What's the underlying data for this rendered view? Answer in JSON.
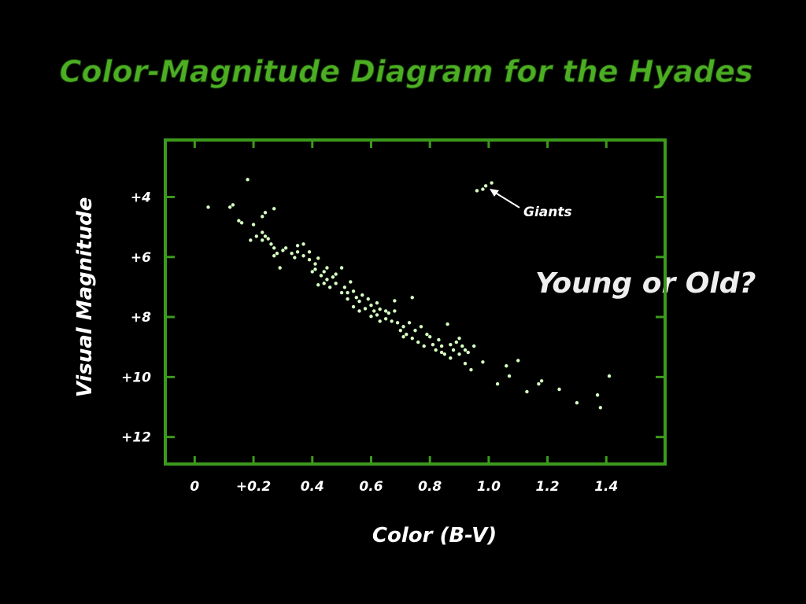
{
  "chart_data": {
    "type": "scatter",
    "title": "Color-Magnitude Diagram for the Hyades",
    "x_label": "Color (B-V)",
    "y_label": "Visual Magnitude",
    "annotations": [
      "Giants",
      "Young or Old?"
    ],
    "color": "#d6ffc2",
    "frame_color": "#3c9a1c",
    "xlim": [
      -0.1,
      1.6
    ],
    "ylim": [
      2.1,
      12.9
    ],
    "y_inverted": true,
    "xticks": [
      0,
      {
        "value": 0.2,
        "label": "+0.2"
      },
      0.4,
      0.6,
      0.8,
      {
        "value": 1,
        "label": "1.0"
      },
      1.2,
      1.4
    ],
    "yticks": [
      {
        "value": 4,
        "label": "+4"
      },
      {
        "value": 6,
        "label": "+6"
      },
      {
        "value": 8,
        "label": "+8"
      },
      {
        "value": 10,
        "label": "+10"
      },
      {
        "value": 12,
        "label": "+12"
      }
    ],
    "x": [
      0.046,
      0.18,
      0.12,
      0.13,
      0.15,
      0.16,
      0.2,
      0.23,
      0.24,
      0.27,
      0.19,
      0.21,
      0.23,
      0.23,
      0.24,
      0.25,
      0.26,
      0.27,
      0.28,
      0.27,
      0.29,
      0.31,
      0.33,
      0.34,
      0.35,
      0.37,
      0.37,
      0.39,
      0.39,
      0.41,
      0.41,
      0.42,
      0.43,
      0.44,
      0.44,
      0.45,
      0.46,
      0.45,
      0.47,
      0.48,
      0.5,
      0.5,
      0.51,
      0.52,
      0.53,
      0.54,
      0.55,
      0.54,
      0.56,
      0.57,
      0.58,
      0.59,
      0.6,
      0.61,
      0.62,
      0.62,
      0.63,
      0.65,
      0.66,
      0.67,
      0.68,
      0.68,
      0.69,
      0.7,
      0.71,
      0.72,
      0.73,
      0.74,
      0.74,
      0.75,
      0.76,
      0.77,
      0.78,
      0.81,
      0.82,
      0.83,
      0.84,
      0.85,
      0.86,
      0.87,
      0.88,
      0.89,
      0.9,
      0.91,
      0.92,
      0.93,
      0.94,
      0.95,
      0.98,
      1.03,
      1.06,
      1.07,
      1.1,
      1.13,
      1.17,
      1.18,
      1.24,
      1.3,
      1.37,
      1.38,
      1.41,
      0.96,
      0.98,
      0.99,
      1.01,
      0.3,
      0.35,
      0.4,
      0.42,
      0.48,
      0.52,
      0.56,
      0.6,
      0.63,
      0.65,
      0.71,
      0.79,
      0.8,
      0.84,
      0.87,
      0.9,
      0.92
    ],
    "y": [
      4.34,
      3.42,
      4.34,
      4.26,
      4.79,
      4.86,
      4.92,
      4.65,
      4.52,
      4.39,
      5.44,
      5.31,
      5.18,
      5.44,
      5.31,
      5.39,
      5.57,
      5.7,
      5.88,
      5.96,
      6.36,
      5.7,
      5.88,
      6.02,
      5.83,
      5.57,
      5.96,
      6.09,
      5.83,
      6.23,
      6.41,
      6.04,
      6.62,
      6.49,
      6.88,
      6.75,
      7.01,
      6.36,
      6.67,
      6.88,
      6.36,
      7.19,
      7.01,
      7.4,
      6.83,
      7.14,
      7.35,
      7.66,
      7.48,
      7.27,
      7.72,
      7.4,
      7.61,
      7.8,
      7.53,
      7.93,
      7.74,
      8.06,
      7.87,
      8.14,
      7.8,
      7.46,
      8.19,
      8.45,
      8.32,
      8.58,
      8.19,
      7.35,
      8.71,
      8.45,
      8.84,
      8.32,
      8.97,
      8.92,
      9.1,
      8.76,
      8.97,
      9.24,
      8.24,
      8.92,
      9.1,
      8.84,
      9.24,
      8.97,
      9.55,
      9.18,
      9.76,
      8.97,
      9.5,
      10.23,
      9.63,
      9.97,
      9.45,
      10.49,
      10.23,
      10.13,
      10.41,
      10.86,
      10.6,
      11.02,
      9.97,
      3.79,
      3.74,
      3.63,
      3.53,
      5.78,
      5.62,
      6.49,
      6.93,
      6.57,
      7.19,
      7.8,
      7.98,
      8.14,
      7.8,
      8.66,
      8.58,
      8.66,
      9.18,
      9.37,
      8.71,
      9.1
    ]
  }
}
